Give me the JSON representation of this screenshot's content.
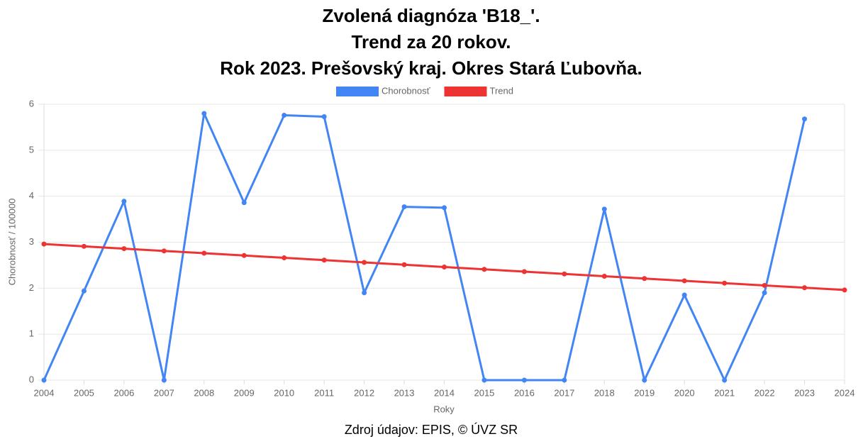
{
  "chart_data": {
    "type": "line",
    "title": [
      "Zvolená diagnóza 'B18_'.",
      "Trend za 20 rokov.",
      "Rok 2023. Prešovský kraj. Okres Stará Ľubovňa."
    ],
    "x_label": "Roky",
    "y_label": "Chorobnosť / 100000",
    "source": "Zdroj údajov: EPIS, © ÚVZ SR",
    "x": [
      2004,
      2005,
      2006,
      2007,
      2008,
      2009,
      2010,
      2011,
      2012,
      2013,
      2014,
      2015,
      2016,
      2017,
      2018,
      2019,
      2020,
      2021,
      2022,
      2023,
      2024
    ],
    "series": [
      {
        "name": "Chorobnosť",
        "color": "#4285f4",
        "values": [
          0,
          1.94,
          3.89,
          0,
          5.8,
          3.86,
          5.76,
          5.73,
          1.9,
          3.77,
          3.75,
          0,
          0,
          0,
          3.72,
          0,
          1.85,
          0,
          1.9,
          5.68,
          null
        ]
      },
      {
        "name": "Trend",
        "color": "#ee3333",
        "values": [
          2.96,
          2.91,
          2.86,
          2.81,
          2.76,
          2.71,
          2.66,
          2.61,
          2.56,
          2.51,
          2.46,
          2.41,
          2.36,
          2.31,
          2.26,
          2.21,
          2.16,
          2.11,
          2.06,
          2.01,
          1.96
        ]
      }
    ],
    "xlim": [
      2004,
      2024
    ],
    "xticks": [
      2004,
      2005,
      2006,
      2007,
      2008,
      2009,
      2010,
      2011,
      2012,
      2013,
      2014,
      2015,
      2016,
      2017,
      2018,
      2019,
      2020,
      2021,
      2022,
      2023,
      2024
    ],
    "ylim": [
      0,
      6
    ],
    "yticks": [
      0,
      1,
      2,
      3,
      4,
      5,
      6
    ],
    "grid": true,
    "legend": "top"
  }
}
